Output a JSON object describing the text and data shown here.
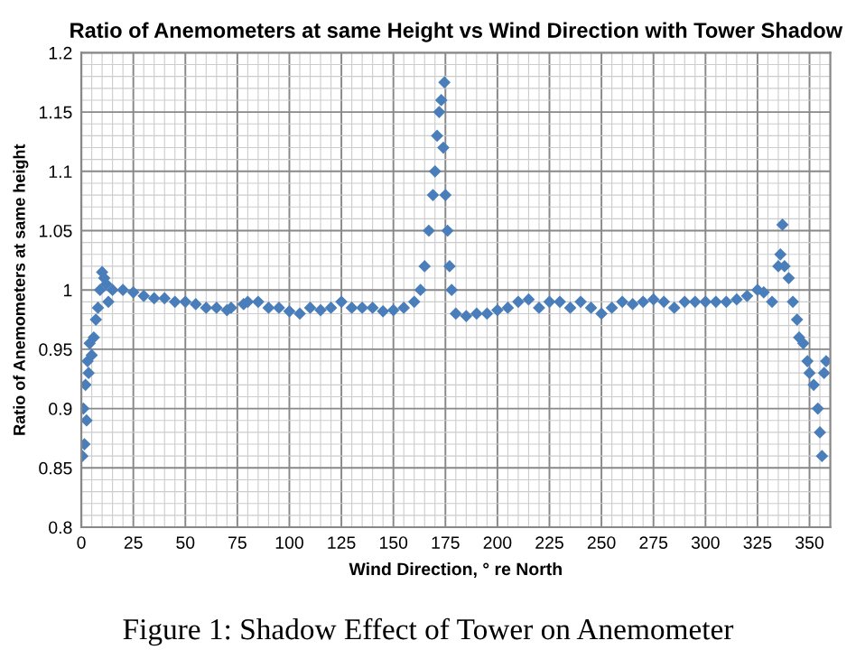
{
  "chart_data": {
    "type": "scatter",
    "title": "Ratio of Anemometers at same Height vs Wind Direction with Tower Shadow",
    "xlabel": "Wind Direction, ° re North",
    "ylabel": "Ratio of Anemometers at same height",
    "annotations": [
      "Figure 1: Shadow Effect of Tower on Anemometer"
    ],
    "x": [
      0.5,
      1,
      1.5,
      2,
      2.5,
      3,
      3.5,
      4,
      5,
      6,
      7,
      8,
      9,
      10,
      11,
      12,
      13,
      15,
      20,
      25,
      30,
      35,
      40,
      45,
      50,
      55,
      60,
      65,
      70,
      72,
      78,
      80,
      85,
      90,
      95,
      100,
      105,
      110,
      115,
      120,
      125,
      130,
      135,
      140,
      145,
      150,
      155,
      160,
      163,
      165,
      167,
      169,
      170,
      171,
      172,
      173,
      174,
      174.5,
      175,
      176,
      177,
      178,
      180,
      185,
      190,
      195,
      200,
      205,
      210,
      215,
      220,
      225,
      230,
      235,
      240,
      245,
      250,
      255,
      260,
      265,
      270,
      275,
      280,
      285,
      290,
      295,
      300,
      305,
      310,
      315,
      320,
      325,
      328,
      332,
      335,
      336,
      337,
      338,
      340,
      342,
      344,
      345,
      347,
      349,
      350,
      352,
      354,
      355,
      356,
      357,
      358
    ],
    "values": [
      0.86,
      0.9,
      0.87,
      0.92,
      0.89,
      0.94,
      0.93,
      0.955,
      0.945,
      0.96,
      0.975,
      0.985,
      1.0,
      1.015,
      1.01,
      1.005,
      0.99,
      1.0,
      1.0,
      0.998,
      0.995,
      0.993,
      0.993,
      0.99,
      0.99,
      0.988,
      0.985,
      0.985,
      0.983,
      0.985,
      0.988,
      0.99,
      0.99,
      0.985,
      0.985,
      0.982,
      0.98,
      0.985,
      0.983,
      0.985,
      0.99,
      0.985,
      0.985,
      0.985,
      0.982,
      0.983,
      0.985,
      0.99,
      1.0,
      1.02,
      1.05,
      1.08,
      1.1,
      1.13,
      1.15,
      1.16,
      1.12,
      1.175,
      1.08,
      1.05,
      1.02,
      1.0,
      0.98,
      0.978,
      0.98,
      0.98,
      0.983,
      0.985,
      0.99,
      0.992,
      0.985,
      0.99,
      0.99,
      0.985,
      0.99,
      0.985,
      0.98,
      0.985,
      0.99,
      0.988,
      0.99,
      0.992,
      0.99,
      0.985,
      0.99,
      0.99,
      0.99,
      0.99,
      0.99,
      0.992,
      0.995,
      1.0,
      0.998,
      0.99,
      1.02,
      1.03,
      1.055,
      1.02,
      1.01,
      0.99,
      0.975,
      0.96,
      0.955,
      0.94,
      0.93,
      0.92,
      0.9,
      0.88,
      0.86,
      0.93,
      0.94
    ],
    "color": "#4a7ebb",
    "marker": "diamond",
    "xlim": [
      0,
      360
    ],
    "xticks": [
      0,
      25,
      50,
      75,
      100,
      125,
      150,
      175,
      200,
      225,
      250,
      275,
      300,
      325,
      350
    ],
    "ylim": [
      0.8,
      1.2
    ],
    "yticks": [
      0.8,
      0.85,
      0.9,
      0.95,
      1,
      1.05,
      1.1,
      1.15,
      1.2
    ],
    "grid": true,
    "legend": false
  }
}
